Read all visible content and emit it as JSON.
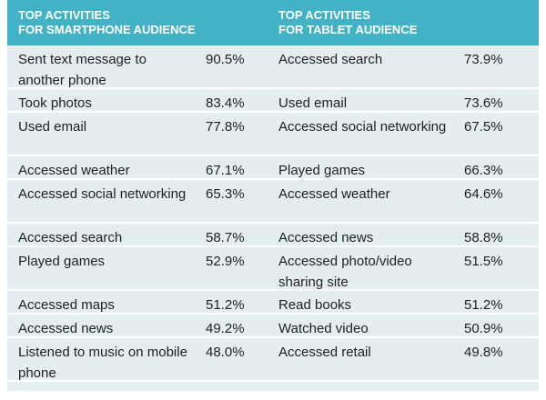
{
  "chart_data": {
    "type": "table",
    "columns": [
      "TOP ACTIVITIES FOR SMARTPHONE AUDIENCE",
      "",
      "TOP ACTIVITIES FOR TABLET AUDIENCE",
      ""
    ],
    "header": {
      "smartphone": [
        "TOP ACTIVITIES",
        "FOR SMARTPHONE AUDIENCE"
      ],
      "tablet": [
        "TOP ACTIVITIES",
        "FOR TABLET AUDIENCE"
      ]
    },
    "rows": [
      {
        "smartphone_activity": "Sent text message to another phone",
        "smartphone_pct": "90.5%",
        "tablet_activity": "Accessed search",
        "tablet_pct": "73.9%"
      },
      {
        "smartphone_activity": "Took photos",
        "smartphone_pct": "83.4%",
        "tablet_activity": "Used email",
        "tablet_pct": "73.6%"
      },
      {
        "smartphone_activity": "Used email",
        "smartphone_pct": "77.8%",
        "tablet_activity": "Accessed social networking",
        "tablet_pct": "67.5%"
      },
      {
        "smartphone_activity": "Accessed weather",
        "smartphone_pct": "67.1%",
        "tablet_activity": "Played games",
        "tablet_pct": "66.3%"
      },
      {
        "smartphone_activity": "Accessed social networking",
        "smartphone_pct": "65.3%",
        "tablet_activity": "Accessed weather",
        "tablet_pct": "64.6%"
      },
      {
        "smartphone_activity": "Accessed search",
        "smartphone_pct": "58.7%",
        "tablet_activity": "Accessed news",
        "tablet_pct": "58.8%"
      },
      {
        "smartphone_activity": "Played games",
        "smartphone_pct": "52.9%",
        "tablet_activity": "Accessed photo/video sharing site",
        "tablet_pct": "51.5%"
      },
      {
        "smartphone_activity": "Accessed maps",
        "smartphone_pct": "51.2%",
        "tablet_activity": "Read books",
        "tablet_pct": "51.2%"
      },
      {
        "smartphone_activity": "Accessed news",
        "smartphone_pct": "49.2%",
        "tablet_activity": "Watched video",
        "tablet_pct": "50.9%"
      },
      {
        "smartphone_activity": "Listened to music on mobile phone",
        "smartphone_pct": "48.0%",
        "tablet_activity": "Accessed retail",
        "tablet_pct": "49.8%"
      }
    ],
    "smartphone": {
      "categories": [
        "Sent text message to another phone",
        "Took photos",
        "Used email",
        "Accessed weather",
        "Accessed social networking",
        "Accessed search",
        "Played games",
        "Accessed maps",
        "Accessed news",
        "Listened to music on mobile phone"
      ],
      "values": [
        90.5,
        83.4,
        77.8,
        67.1,
        65.3,
        58.7,
        52.9,
        51.2,
        49.2,
        48.0
      ]
    },
    "tablet": {
      "categories": [
        "Accessed search",
        "Used email",
        "Accessed social networking",
        "Played games",
        "Accessed weather",
        "Accessed news",
        "Accessed photo/video sharing site",
        "Read books",
        "Watched video",
        "Accessed retail"
      ],
      "values": [
        73.9,
        73.6,
        67.5,
        66.3,
        64.6,
        58.8,
        51.5,
        51.2,
        50.9,
        49.8
      ]
    }
  },
  "colors": {
    "header_bg": "#42b3c7",
    "header_text": "#ffffff",
    "row_bg": "#e4eef1",
    "row_divider": "#ffffff",
    "body_text": "#1f1f1f"
  }
}
